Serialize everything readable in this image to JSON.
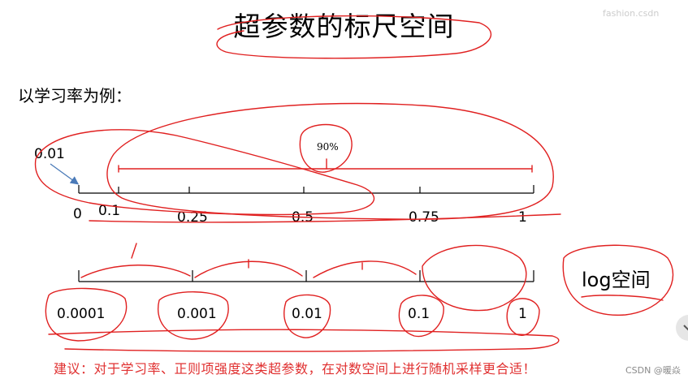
{
  "slide": {
    "title": "超参数的标尺空间",
    "intro": "以学习率为例：",
    "arrow_label": "0.01",
    "linear_axis": {
      "tick_values": [
        0,
        0.1,
        0.25,
        0.5,
        0.75,
        1
      ],
      "tick_labels": [
        "0",
        "0.1",
        "0.25",
        "0.5",
        "0.75",
        "1"
      ],
      "annotation": "90%"
    },
    "log_axis": {
      "tick_labels": [
        "0.0001",
        "0.001",
        "0.01",
        "0.1",
        "1"
      ],
      "side_label": "log空间"
    },
    "suggestion": "建议：对于学习率、正则项强度这类超参数，在对数空间上进行随机采样更合适！",
    "watermark": "CSDN @暖焱",
    "ink_color": "#e02020",
    "text_color_suggestion": "#e03030",
    "arrow_color": "#4a7ab8"
  }
}
